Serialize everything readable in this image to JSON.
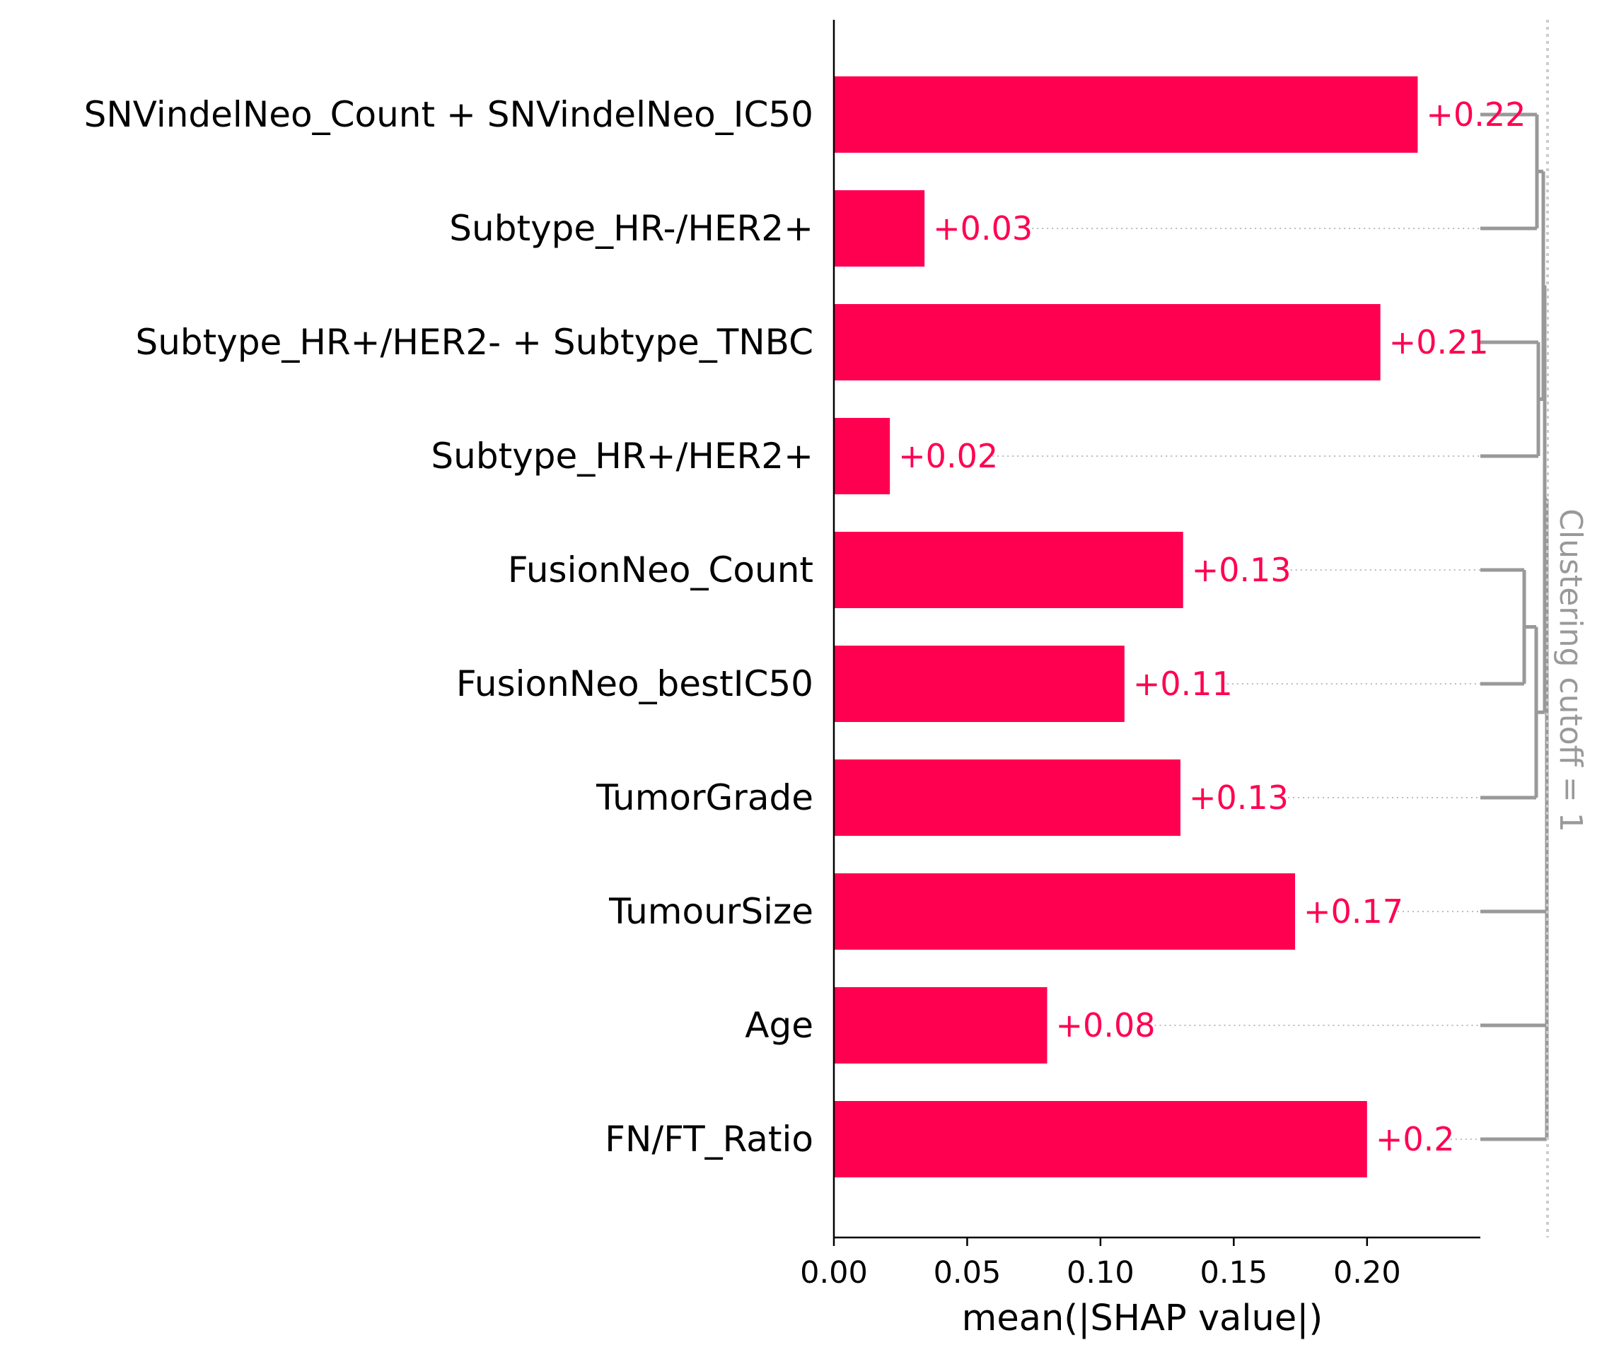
{
  "chart_data": {
    "type": "bar",
    "orientation": "horizontal",
    "title": "",
    "xlabel": "mean(|SHAP value|)",
    "ylabel": "",
    "xlim": [
      0,
      0.2425
    ],
    "xticks": [
      "0.00",
      "0.05",
      "0.10",
      "0.15",
      "0.20"
    ],
    "categories": [
      "SNVindelNeo_Count + SNVindelNeo_IC50",
      "Subtype_HR-/HER2+",
      "Subtype_HR+/HER2- + Subtype_TNBC",
      "Subtype_HR+/HER2+",
      "FusionNeo_Count",
      "FusionNeo_bestIC50",
      "TumorGrade",
      "TumourSize",
      "Age",
      "FN/FT_Ratio"
    ],
    "values": [
      0.219,
      0.034,
      0.205,
      0.021,
      0.131,
      0.109,
      0.13,
      0.173,
      0.08,
      0.2
    ],
    "value_labels": [
      "+0.22",
      "+0.03",
      "+0.21",
      "+0.02",
      "+0.13",
      "+0.11",
      "+0.13",
      "+0.17",
      "+0.08",
      "+0.2"
    ],
    "clustering_label": "Clustering cutoff = 1",
    "grid": false,
    "legend": "none",
    "colors": {
      "bar": "#ff0051",
      "value_text": "#ff0051",
      "dendrogram": "#999999",
      "axis": "#000000"
    }
  }
}
